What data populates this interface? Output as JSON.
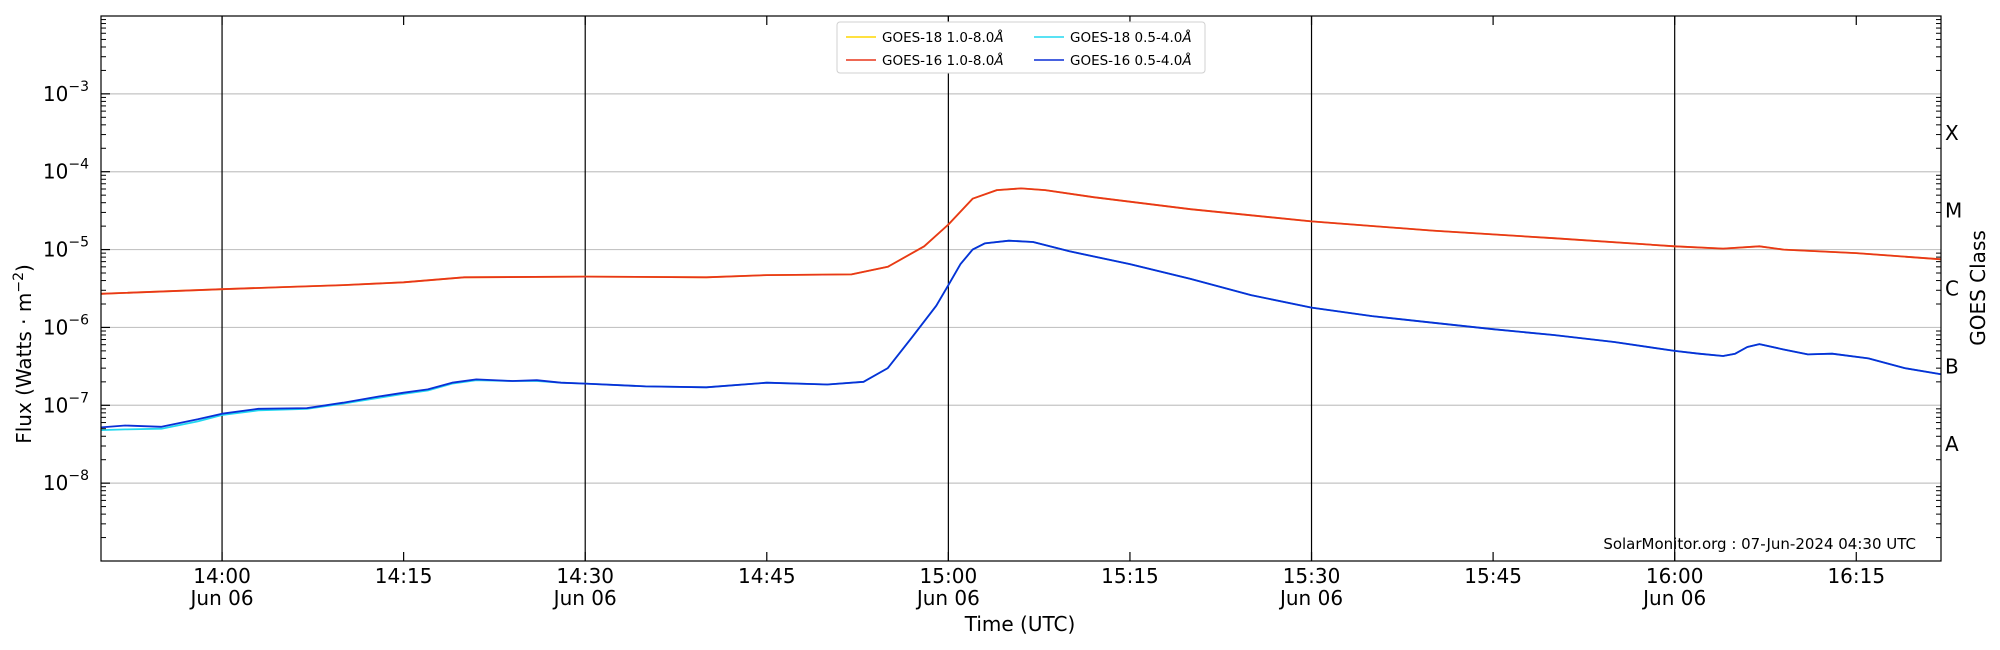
{
  "chart_data": {
    "type": "line",
    "title": "",
    "xlabel": "Time (UTC)",
    "ylabel": "Flux (Watts · m",
    "ylabel_sup": "−2",
    "ylabel_tail": ")",
    "right_label": "GOES Class",
    "y_scale": "log",
    "ylim": [
      1e-09,
      0.01
    ],
    "xlim": [
      "2024-06-06 13:50",
      "2024-06-06 16:22"
    ],
    "y_ticks": [
      {
        "value": 1e-08,
        "base": "10",
        "exp": "−8"
      },
      {
        "value": 1e-07,
        "base": "10",
        "exp": "−7"
      },
      {
        "value": 1e-06,
        "base": "10",
        "exp": "−6"
      },
      {
        "value": 1e-05,
        "base": "10",
        "exp": "−5"
      },
      {
        "value": 0.0001,
        "base": "10",
        "exp": "−4"
      },
      {
        "value": 0.001,
        "base": "10",
        "exp": "−3"
      }
    ],
    "x_ticks": [
      {
        "time": "14:00",
        "label": "14:00",
        "sublabel": "Jun 06"
      },
      {
        "time": "14:15",
        "label": "14:15",
        "sublabel": ""
      },
      {
        "time": "14:30",
        "label": "14:30",
        "sublabel": "Jun 06"
      },
      {
        "time": "14:45",
        "label": "14:45",
        "sublabel": ""
      },
      {
        "time": "15:00",
        "label": "15:00",
        "sublabel": "Jun 06"
      },
      {
        "time": "15:15",
        "label": "15:15",
        "sublabel": ""
      },
      {
        "time": "15:30",
        "label": "15:30",
        "sublabel": "Jun 06"
      },
      {
        "time": "15:45",
        "label": "15:45",
        "sublabel": ""
      },
      {
        "time": "16:00",
        "label": "16:00",
        "sublabel": "Jun 06"
      },
      {
        "time": "16:15",
        "label": "16:15",
        "sublabel": ""
      }
    ],
    "vertical_lines": [
      "14:00",
      "14:30",
      "15:00",
      "15:30",
      "16:00"
    ],
    "goes_classes": [
      {
        "label": "A",
        "value": 3.16e-08
      },
      {
        "label": "B",
        "value": 3.16e-07
      },
      {
        "label": "C",
        "value": 3.16e-06
      },
      {
        "label": "M",
        "value": 3.16e-05
      },
      {
        "label": "X",
        "value": 0.000316
      }
    ],
    "grid": true,
    "legend_position": "top-center",
    "credit": "SolarMonitor.org : 07-Jun-2024 04:30 UTC",
    "series": [
      {
        "name": "GOES-18 1.0-8.0",
        "unit": "Å",
        "color": "#ffd700",
        "x": [
          "13:50",
          "14:00",
          "14:05",
          "14:10",
          "14:15",
          "14:20",
          "14:30",
          "14:40",
          "14:45",
          "14:52",
          "14:55",
          "14:58",
          "15:00",
          "15:02",
          "15:04",
          "15:06",
          "15:08",
          "15:12",
          "15:20",
          "15:30",
          "15:40",
          "15:50",
          "16:00",
          "16:04",
          "16:07",
          "16:09",
          "16:15",
          "16:22"
        ],
        "y": [
          2.7e-06,
          3.1e-06,
          3.3e-06,
          3.5e-06,
          3.8e-06,
          4.4e-06,
          4.5e-06,
          4.4e-06,
          4.7e-06,
          4.8e-06,
          6e-06,
          1.1e-05,
          2.1e-05,
          4.5e-05,
          5.8e-05,
          6.1e-05,
          5.8e-05,
          4.7e-05,
          3.3e-05,
          2.3e-05,
          1.75e-05,
          1.4e-05,
          1.1e-05,
          1.03e-05,
          1.1e-05,
          1e-05,
          9e-06,
          7.5e-06
        ]
      },
      {
        "name": "GOES-16 1.0-8.0",
        "unit": "Å",
        "color": "#e8361c",
        "x": [
          "13:50",
          "14:00",
          "14:05",
          "14:10",
          "14:15",
          "14:20",
          "14:30",
          "14:40",
          "14:45",
          "14:52",
          "14:55",
          "14:58",
          "15:00",
          "15:02",
          "15:04",
          "15:06",
          "15:08",
          "15:12",
          "15:20",
          "15:30",
          "15:40",
          "15:50",
          "16:00",
          "16:04",
          "16:07",
          "16:09",
          "16:15",
          "16:22"
        ],
        "y": [
          2.7e-06,
          3.1e-06,
          3.3e-06,
          3.5e-06,
          3.8e-06,
          4.4e-06,
          4.5e-06,
          4.4e-06,
          4.7e-06,
          4.8e-06,
          6e-06,
          1.1e-05,
          2.1e-05,
          4.5e-05,
          5.8e-05,
          6.1e-05,
          5.8e-05,
          4.7e-05,
          3.3e-05,
          2.3e-05,
          1.75e-05,
          1.4e-05,
          1.1e-05,
          1.03e-05,
          1.1e-05,
          1e-05,
          9e-06,
          7.5e-06
        ]
      },
      {
        "name": "GOES-18 0.5-4.0",
        "unit": "Å",
        "color": "#22d8f0",
        "x": [
          "13:50",
          "13:52",
          "13:55",
          "13:58",
          "14:00",
          "14:03",
          "14:07",
          "14:10",
          "14:13",
          "14:15",
          "14:17",
          "14:19",
          "14:21",
          "14:24",
          "14:26",
          "14:28",
          "14:30",
          "14:35",
          "14:40",
          "14:45",
          "14:50",
          "14:53",
          "14:55",
          "14:57",
          "14:59",
          "15:00",
          "15:01",
          "15:02",
          "15:03",
          "15:05",
          "15:07",
          "15:10",
          "15:15",
          "15:20",
          "15:25",
          "15:30",
          "15:35",
          "15:40",
          "15:45",
          "15:50",
          "15:55",
          "16:00",
          "16:02",
          "16:04",
          "16:05",
          "16:06",
          "16:07",
          "16:09",
          "16:11",
          "16:13",
          "16:16",
          "16:19",
          "16:22"
        ],
        "y": [
          4.8e-08,
          4.9e-08,
          5e-08,
          6.2e-08,
          7.5e-08,
          8.6e-08,
          9e-08,
          1.05e-07,
          1.25e-07,
          1.4e-07,
          1.55e-07,
          1.9e-07,
          2.1e-07,
          2.05e-07,
          2.05e-07,
          1.95e-07,
          1.9e-07,
          1.75e-07,
          1.7e-07,
          1.95e-07,
          1.85e-07,
          2e-07,
          3e-07,
          7.5e-07,
          1.9e-06,
          3.5e-06,
          6.5e-06,
          1e-05,
          1.2e-05,
          1.3e-05,
          1.25e-05,
          9.5e-06,
          6.5e-06,
          4.2e-06,
          2.6e-06,
          1.8e-06,
          1.4e-06,
          1.15e-06,
          9.5e-07,
          8e-07,
          6.5e-07,
          5e-07,
          4.6e-07,
          4.3e-07,
          4.6e-07,
          5.6e-07,
          6.1e-07,
          5.2e-07,
          4.5e-07,
          4.6e-07,
          4e-07,
          3e-07,
          2.5e-07
        ]
      },
      {
        "name": "GOES-16 0.5-4.0",
        "unit": "Å",
        "color": "#0a2fd6",
        "x": [
          "13:50",
          "13:52",
          "13:55",
          "13:58",
          "14:00",
          "14:03",
          "14:07",
          "14:10",
          "14:13",
          "14:15",
          "14:17",
          "14:19",
          "14:21",
          "14:24",
          "14:26",
          "14:28",
          "14:30",
          "14:35",
          "14:40",
          "14:45",
          "14:50",
          "14:53",
          "14:55",
          "14:57",
          "14:59",
          "15:00",
          "15:01",
          "15:02",
          "15:03",
          "15:05",
          "15:07",
          "15:10",
          "15:15",
          "15:20",
          "15:25",
          "15:30",
          "15:35",
          "15:40",
          "15:45",
          "15:50",
          "15:55",
          "16:00",
          "16:02",
          "16:04",
          "16:05",
          "16:06",
          "16:07",
          "16:09",
          "16:11",
          "16:13",
          "16:16",
          "16:19",
          "16:22"
        ],
        "y": [
          5.2e-08,
          5.5e-08,
          5.3e-08,
          6.6e-08,
          7.8e-08,
          9e-08,
          9.2e-08,
          1.08e-07,
          1.3e-07,
          1.45e-07,
          1.6e-07,
          1.95e-07,
          2.15e-07,
          2.05e-07,
          2.1e-07,
          1.95e-07,
          1.9e-07,
          1.75e-07,
          1.7e-07,
          1.95e-07,
          1.85e-07,
          2e-07,
          3e-07,
          7.5e-07,
          1.9e-06,
          3.5e-06,
          6.5e-06,
          1e-05,
          1.2e-05,
          1.3e-05,
          1.25e-05,
          9.5e-06,
          6.5e-06,
          4.2e-06,
          2.6e-06,
          1.8e-06,
          1.4e-06,
          1.15e-06,
          9.5e-07,
          8e-07,
          6.5e-07,
          5e-07,
          4.6e-07,
          4.3e-07,
          4.6e-07,
          5.6e-07,
          6.1e-07,
          5.2e-07,
          4.5e-07,
          4.6e-07,
          4e-07,
          3e-07,
          2.5e-07
        ]
      }
    ]
  }
}
